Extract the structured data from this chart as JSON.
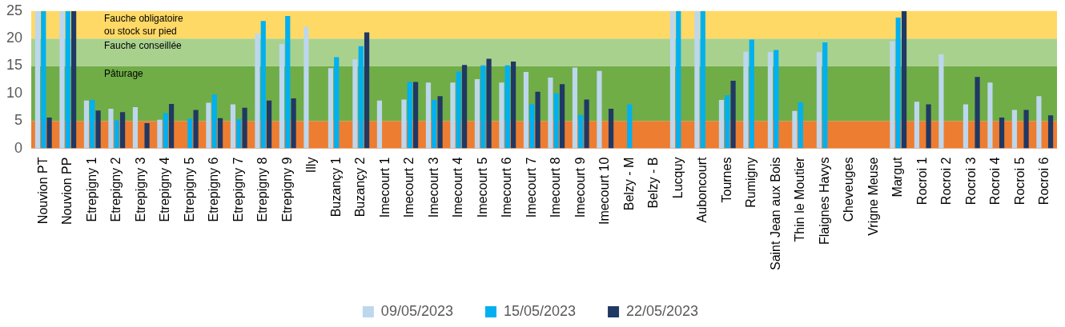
{
  "chart_data": {
    "type": "bar",
    "categories": [
      "Nouvion PT",
      "Nouvion PP",
      "Etrepigny 1",
      "Etrepigny 2",
      "Etrepigny 3",
      "Etrepigny 4",
      "Etrepigny 5",
      "Etrepigny 6",
      "Etrepigny 7",
      "Etrepigny 8",
      "Etrepigny 9",
      "Illy",
      "Buzançy 1",
      "Buzançy 2",
      "Imecourt 1",
      "Imecourt 2",
      "Imecourt 3",
      "Imecourt 4",
      "Imecourt 5",
      "Imecourt 6",
      "Imecourt 7",
      "Imecourt 8",
      "Imecourt 9",
      "Imecourt 10",
      "Belzy - M",
      "Belzy - B",
      "Lucquy",
      "Auboncourt",
      "Tournes",
      "Rumigny",
      "Saint Jean aux Bois",
      "Thin le Moutier",
      "Flaignes Havys",
      "Cheveuges",
      "Vrigne Meuse",
      "Margut",
      "Rocroi 1",
      "Rocroi 2",
      "Rocroi 3",
      "Rocroi 4",
      "Rocroi 5",
      "Rocroi 6"
    ],
    "series": [
      {
        "name": "09/05/2023",
        "color": "#bdd7ee",
        "values": [
          25,
          25,
          8.7,
          7.2,
          7.5,
          5.2,
          null,
          8.3,
          8.0,
          20.9,
          19.0,
          22.1,
          14.6,
          16.2,
          8.7,
          8.9,
          12.0,
          12.0,
          12.6,
          12.0,
          13.9,
          12.9,
          14.7,
          14.1,
          null,
          null,
          25,
          25,
          8.8,
          17.6,
          17.5,
          6.8,
          17.5,
          null,
          null,
          19.5,
          8.5,
          17.1,
          8.0,
          12.0,
          7.0,
          9.5
        ]
      },
      {
        "name": "15/05/2023",
        "color": "#00b0f0",
        "values": [
          25,
          25,
          8.8,
          5.1,
          null,
          6.4,
          5.4,
          9.8,
          5.3,
          23.2,
          24.1,
          null,
          16.6,
          18.6,
          null,
          12.1,
          8.8,
          14.0,
          15.1,
          15.1,
          8.0,
          10.0,
          6.1,
          null,
          8.0,
          null,
          25,
          25,
          9.7,
          19.8,
          17.9,
          8.4,
          19.3,
          null,
          null,
          23.8,
          null,
          null,
          null,
          null,
          null,
          null
        ]
      },
      {
        "name": "22/05/2023",
        "color": "#203864",
        "values": [
          5.6,
          25,
          6.9,
          6.6,
          4.6,
          8.1,
          7.0,
          5.5,
          7.4,
          8.7,
          9.1,
          null,
          null,
          21.1,
          null,
          12.1,
          9.5,
          15.2,
          16.3,
          15.8,
          10.3,
          11.7,
          8.9,
          7.2,
          null,
          null,
          null,
          null,
          12.3,
          null,
          null,
          null,
          null,
          null,
          null,
          25,
          8.0,
          null,
          13.0,
          5.6,
          7.0,
          6.0
        ]
      }
    ],
    "ylim": [
      0,
      25
    ],
    "yticks": [
      0,
      5,
      10,
      15,
      20,
      25
    ],
    "bands": [
      {
        "axis": "y",
        "from": 0,
        "to": 5,
        "label": null,
        "color": "#ed7d31"
      },
      {
        "axis": "y",
        "from": 5,
        "to": 15,
        "label": "Pâturage",
        "color": "#70ad47"
      },
      {
        "axis": "y",
        "from": 15,
        "to": 20,
        "label": "Fauche conseillée",
        "color": "#a9d18e"
      },
      {
        "axis": "y",
        "from": 20,
        "to": 25,
        "label": "Fauche obligatoire\nou stock sur pied",
        "color": "#ffd966"
      }
    ],
    "legend": "bottom"
  }
}
